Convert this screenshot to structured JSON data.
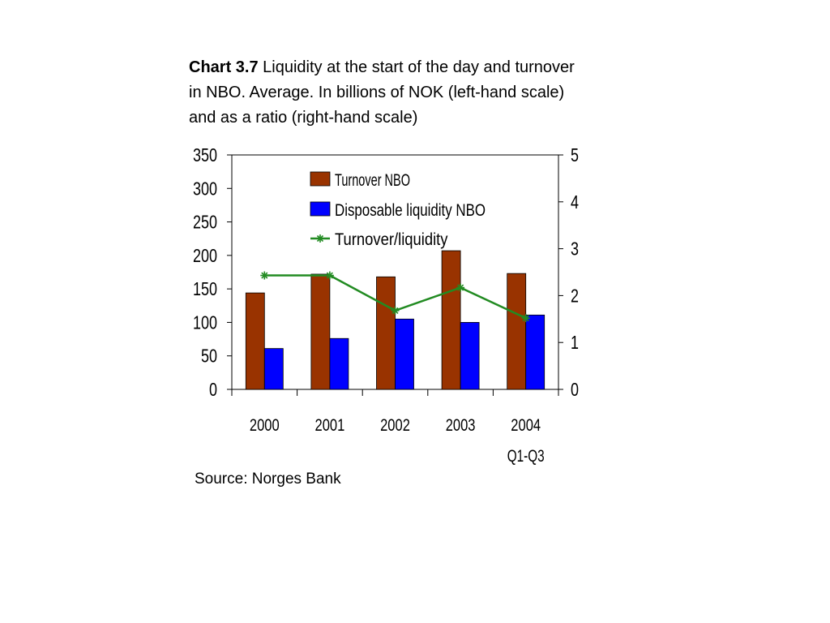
{
  "title": {
    "label": "Chart 3.7",
    "text": "Liquidity at the start of the day and turnover in NBO. Average. In billions of NOK (left-hand scale) and as a ratio (right-hand scale)"
  },
  "source": "Source: Norges Bank",
  "chart_data": {
    "type": "bar",
    "categories": [
      [
        "2000"
      ],
      [
        "2001"
      ],
      [
        "2002"
      ],
      [
        "2003"
      ],
      [
        "2004",
        "Q1-Q3"
      ]
    ],
    "series": [
      {
        "name": "Turnover NBO",
        "type": "bar",
        "axis": "left",
        "color": "#993300",
        "values": [
          144,
          172,
          168,
          207,
          173
        ]
      },
      {
        "name": "Disposable liquidity NBO",
        "type": "bar",
        "axis": "left",
        "color": "#0000FF",
        "values": [
          61,
          76,
          105,
          100,
          111
        ]
      },
      {
        "name": "Turnover/liquidity",
        "type": "line",
        "axis": "right",
        "color": "#228B22",
        "marker": "asterisk",
        "values": [
          2.43,
          2.43,
          1.68,
          2.17,
          1.52
        ]
      }
    ],
    "y_left": {
      "range": [
        0,
        350
      ],
      "ticks": [
        0,
        50,
        100,
        150,
        200,
        250,
        300,
        350
      ]
    },
    "y_right": {
      "range": [
        0,
        5
      ],
      "ticks": [
        0,
        1,
        2,
        3,
        4,
        5
      ]
    },
    "grid": false,
    "legend": "top-center, inside plot area"
  }
}
